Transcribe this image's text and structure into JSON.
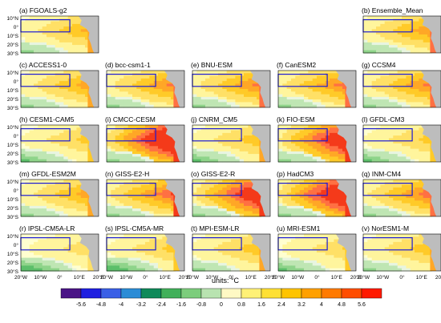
{
  "figure": {
    "panels": [
      {
        "label": "(a) FGOALS-g2",
        "intensity": 0.55,
        "variant": 0
      },
      {
        "label": "(b) Ensemble_Mean",
        "intensity": 0.65,
        "variant": 1
      },
      {
        "label": "(c) ACCESS1-0",
        "intensity": 0.6,
        "variant": 2
      },
      {
        "label": "(d) bcc-csm1-1",
        "intensity": 0.7,
        "variant": 1
      },
      {
        "label": "(e) BNU-ESM",
        "intensity": 0.7,
        "variant": 2
      },
      {
        "label": "(f) CanESM2",
        "intensity": 0.72,
        "variant": 0
      },
      {
        "label": "(g) CCSM4",
        "intensity": 0.7,
        "variant": 1
      },
      {
        "label": "(h) CESM1-CAM5",
        "intensity": 0.45,
        "variant": 3
      },
      {
        "label": "(i) CMCC-CESM",
        "intensity": 1.0,
        "variant": 4
      },
      {
        "label": "(j) CNRM_CM5",
        "intensity": 0.5,
        "variant": 3
      },
      {
        "label": "(k) FIO-ESM",
        "intensity": 0.85,
        "variant": 4
      },
      {
        "label": "(l) GFDL-CM3",
        "intensity": 0.45,
        "variant": 3
      },
      {
        "label": "(m) GFDL-ESM2M",
        "intensity": 0.6,
        "variant": 2
      },
      {
        "label": "(n) GISS-E2-H",
        "intensity": 0.8,
        "variant": 1
      },
      {
        "label": "(o) GISS-E2-R",
        "intensity": 0.85,
        "variant": 4
      },
      {
        "label": "(p) HadCM3",
        "intensity": 0.95,
        "variant": 5
      },
      {
        "label": "(q) INM-CM4",
        "intensity": 0.75,
        "variant": 1
      },
      {
        "label": "(r) IPSL-CM5A-LR",
        "intensity": 0.35,
        "variant": 6
      },
      {
        "label": "(s) IPSL-CM5A-MR",
        "intensity": 0.45,
        "variant": 6
      },
      {
        "label": "(t) MPI-ESM-LR",
        "intensity": 0.5,
        "variant": 2
      },
      {
        "label": "(u) MRI-ESM1",
        "intensity": 0.4,
        "variant": 3
      },
      {
        "label": "(v) NorESM1-M",
        "intensity": 0.5,
        "variant": 2
      }
    ],
    "lat_labels": [
      "10°N",
      "0°",
      "10°S",
      "20°S",
      "30°S"
    ],
    "lon_labels": [
      "20°W",
      "10°W",
      "0°",
      "10°E",
      "20°E"
    ],
    "colorbar": {
      "title": "units: °C",
      "ticks": [
        "-5.6",
        "-4.8",
        "-4",
        "-3.2",
        "-2.4",
        "-1.6",
        "-0.8",
        "0",
        "0.8",
        "1.6",
        "2.4",
        "3.2",
        "4",
        "4.8",
        "5.6"
      ],
      "colors": [
        "#4a1486",
        "#1f1fe0",
        "#3a5fe6",
        "#2b8cd6",
        "#0f8a5a",
        "#41b05a",
        "#7ccd7c",
        "#b8e3b0",
        "#fff9c4",
        "#fff176",
        "#ffe033",
        "#ffc400",
        "#ffa000",
        "#ff7a00",
        "#ff4d00",
        "#ff1a00"
      ]
    },
    "colors": {
      "land": "#bdbdbd",
      "box": "#1a1ad6",
      "ocean_warm": [
        "#ffffd0",
        "#fff59d",
        "#ffe066",
        "#ffca28",
        "#ffa726",
        "#ff7043",
        "#f43a1a"
      ],
      "ocean_cool": [
        "#e8f5e0",
        "#bfe6b3",
        "#8fd48a",
        "#5cbf6a"
      ]
    }
  }
}
